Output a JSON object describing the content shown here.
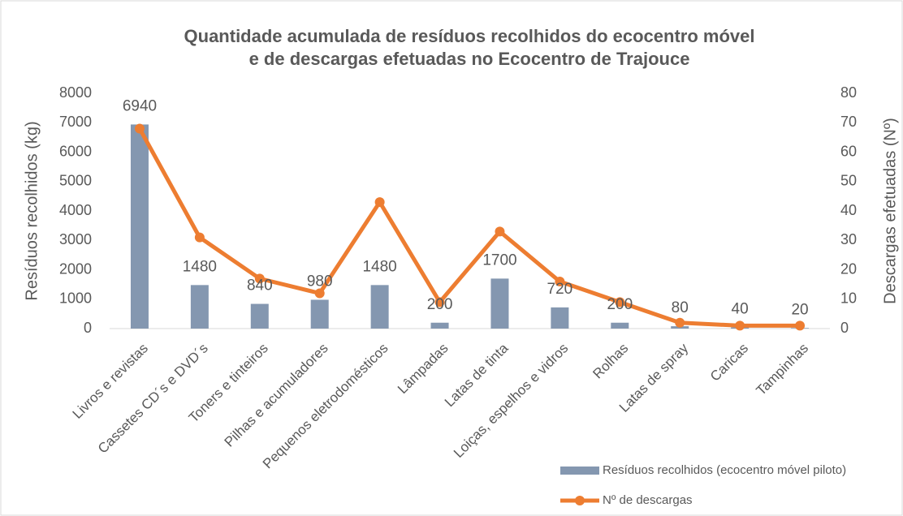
{
  "chart_data": {
    "type": "bar_line",
    "title": [
      "Quantidade acumulada de resíduos recolhidos do ecocentro móvel",
      "e de descargas efetuadas no Ecocentro de Trajouce"
    ],
    "y_label": "Resíduos recolhidos (kg)",
    "y2_label": "Descargas efetuadas (Nº)",
    "categories": [
      "Livros e revistas",
      "Cassetes CD´s e DVD´s",
      "Toners e tinteiros",
      "Pilhas e acumuladores",
      "Pequenos eletrodomésticos",
      "Lâmpadas",
      "Latas de tinta",
      "Loiças, espelhos e vidros",
      "Rolhas",
      "Latas de spray",
      "Caricas",
      "Tampinhas"
    ],
    "series": [
      {
        "name": "Resíduos recolhidos (ecocentro móvel piloto)",
        "type": "bar",
        "color": "#8497b0",
        "values": [
          6940,
          1480,
          840,
          980,
          1480,
          200,
          1700,
          720,
          200,
          80,
          40,
          20
        ]
      },
      {
        "name": "Nº de descargas",
        "type": "line",
        "color": "#ed7d31",
        "axis": "y2",
        "values": [
          68,
          31,
          17,
          12,
          43,
          9,
          33,
          16,
          9,
          2,
          1,
          1
        ]
      }
    ],
    "ylim": [
      0,
      8000
    ],
    "yticks": [
      0,
      1000,
      2000,
      3000,
      4000,
      5000,
      6000,
      7000,
      8000
    ],
    "y2lim": [
      0,
      80
    ],
    "y2ticks": [
      0,
      10,
      20,
      30,
      40,
      50,
      60,
      70,
      80
    ],
    "legend": "bottom-right"
  }
}
